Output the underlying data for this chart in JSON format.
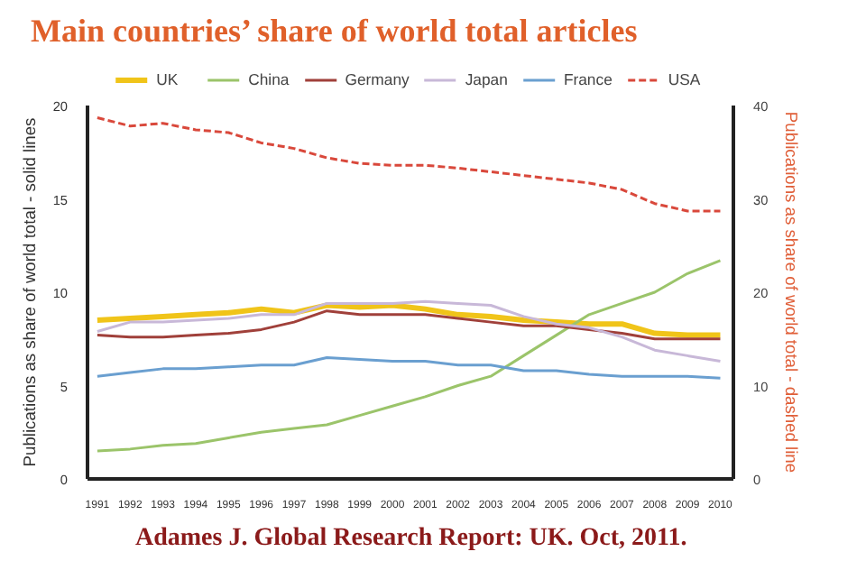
{
  "chart_data": {
    "type": "line",
    "title": "Main countries’ share of world total articles",
    "ylabel": "Publications as share of world total - solid lines",
    "y2label": "Publications as share of world total - dashed line",
    "annotations": [
      "Adames J. Global Research Report: UK. Oct, 2011."
    ],
    "x": [
      1991,
      1992,
      1993,
      1994,
      1995,
      1996,
      1997,
      1998,
      1999,
      2000,
      2001,
      2002,
      2003,
      2004,
      2005,
      2006,
      2007,
      2008,
      2009,
      2010
    ],
    "xlim": [
      1990.7,
      2010.4
    ],
    "xticks": [
      1991,
      1992,
      1993,
      1994,
      1995,
      1996,
      1997,
      1998,
      1999,
      2000,
      2001,
      2002,
      2003,
      2004,
      2005,
      2006,
      2007,
      2008,
      2009,
      2010
    ],
    "ylim": [
      0,
      20
    ],
    "yticks": [
      0,
      5,
      10,
      15,
      20
    ],
    "y2lim": [
      0,
      40
    ],
    "y2ticks": [
      0,
      10,
      20,
      30,
      40
    ],
    "grid": false,
    "legend": "top",
    "marker": "none",
    "series": [
      {
        "name": "UK",
        "color": "#f0c419",
        "values": [
          8.5,
          8.6,
          8.7,
          8.8,
          8.9,
          9.1,
          8.9,
          9.3,
          9.2,
          9.3,
          9.1,
          8.8,
          8.7,
          8.5,
          8.4,
          8.3,
          8.3,
          7.8,
          7.7,
          7.7
        ]
      },
      {
        "name": "China",
        "color": "#9bc46a",
        "values": [
          1.5,
          1.6,
          1.8,
          1.9,
          2.2,
          2.5,
          2.7,
          2.9,
          3.4,
          3.9,
          4.4,
          5.0,
          5.5,
          6.6,
          7.7,
          8.8,
          9.4,
          10.0,
          11.0,
          11.7
        ]
      },
      {
        "name": "Germany",
        "color": "#a0403a",
        "values": [
          7.7,
          7.6,
          7.6,
          7.7,
          7.8,
          8.0,
          8.4,
          9.0,
          8.8,
          8.8,
          8.8,
          8.6,
          8.4,
          8.2,
          8.2,
          8.0,
          7.8,
          7.5,
          7.5,
          7.5
        ]
      },
      {
        "name": "Japan",
        "color": "#c8b8d8",
        "values": [
          7.9,
          8.4,
          8.4,
          8.5,
          8.6,
          8.8,
          8.8,
          9.4,
          9.4,
          9.4,
          9.5,
          9.4,
          9.3,
          8.7,
          8.3,
          8.1,
          7.6,
          6.9,
          6.6,
          6.3
        ]
      },
      {
        "name": "France",
        "color": "#6a9fd0",
        "values": [
          5.5,
          5.7,
          5.9,
          5.9,
          6.0,
          6.1,
          6.1,
          6.5,
          6.4,
          6.3,
          6.3,
          6.1,
          6.1,
          5.8,
          5.8,
          5.6,
          5.5,
          5.5,
          5.5,
          5.4
        ]
      },
      {
        "name": "USA",
        "color": "#d9483b",
        "axis": "y2",
        "line_style": "dashed",
        "values": [
          38.7,
          37.8,
          38.1,
          37.4,
          37.1,
          36.0,
          35.4,
          34.4,
          33.8,
          33.6,
          33.6,
          33.3,
          32.9,
          32.5,
          32.1,
          31.7,
          31.0,
          29.5,
          28.7,
          28.7
        ]
      }
    ]
  }
}
